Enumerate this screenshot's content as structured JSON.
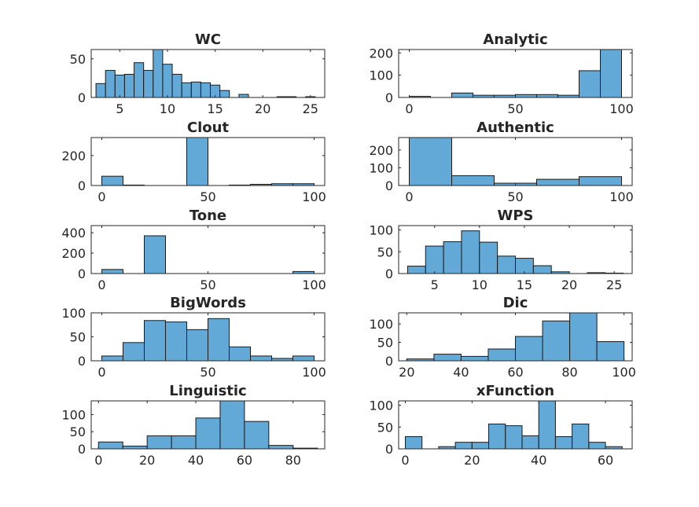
{
  "chart_data": [
    {
      "type": "bar",
      "title": "WC",
      "xlim": [
        2,
        26.5
      ],
      "ylim": [
        0,
        62
      ],
      "edges": [
        2.5,
        3.5,
        4.5,
        5.5,
        6.5,
        7.5,
        8.5,
        9.5,
        10.5,
        11.5,
        12.5,
        13.5,
        14.5,
        15.5,
        16.5,
        17.5,
        18.5,
        19.5,
        20.5,
        21.5,
        22.5,
        23.5,
        24.5,
        25.5
      ],
      "values": [
        18,
        35,
        29,
        30,
        45,
        35,
        62,
        43,
        30,
        19,
        20,
        19,
        16,
        9,
        0,
        4,
        0,
        0,
        0,
        1,
        1,
        0,
        1
      ],
      "xticks": [
        5,
        10,
        15,
        20,
        25
      ],
      "yticks": [
        0,
        50
      ]
    },
    {
      "type": "bar",
      "title": "Analytic",
      "xlim": [
        -5,
        105
      ],
      "ylim": [
        0,
        215
      ],
      "edges": [
        0,
        10,
        20,
        30,
        40,
        50,
        60,
        70,
        80,
        90,
        100
      ],
      "values": [
        5,
        0,
        20,
        10,
        10,
        13,
        13,
        10,
        120,
        215
      ],
      "xticks": [
        0,
        50,
        100
      ],
      "yticks": [
        0,
        100,
        200
      ]
    },
    {
      "type": "bar",
      "title": "Clout",
      "xlim": [
        -5,
        105
      ],
      "ylim": [
        0,
        320
      ],
      "edges": [
        0,
        10,
        20,
        30,
        40,
        50,
        60,
        70,
        80,
        90,
        100
      ],
      "values": [
        62,
        3,
        0,
        0,
        320,
        0,
        3,
        8,
        12,
        12
      ],
      "xticks": [
        0,
        50,
        100
      ],
      "yticks": [
        0,
        200
      ]
    },
    {
      "type": "bar",
      "title": "Authentic",
      "xlim": [
        -5,
        105
      ],
      "ylim": [
        0,
        270
      ],
      "edges": [
        0,
        20,
        40,
        60,
        80,
        100
      ],
      "values": [
        270,
        55,
        13,
        35,
        50
      ],
      "xticks": [
        0,
        50,
        100
      ],
      "yticks": [
        0,
        100,
        200
      ]
    },
    {
      "type": "bar",
      "title": "Tone",
      "xlim": [
        -5,
        105
      ],
      "ylim": [
        0,
        470
      ],
      "edges": [
        0,
        10,
        20,
        30,
        40,
        50,
        60,
        70,
        80,
        90,
        100
      ],
      "values": [
        40,
        0,
        370,
        0,
        0,
        0,
        0,
        0,
        0,
        20
      ],
      "xticks": [
        0,
        50,
        100
      ],
      "yticks": [
        0,
        200,
        400
      ]
    },
    {
      "type": "bar",
      "title": "WPS",
      "xlim": [
        1,
        27
      ],
      "ylim": [
        0,
        110
      ],
      "edges": [
        2,
        4,
        6,
        8,
        10,
        12,
        14,
        16,
        18,
        20,
        22,
        24,
        26
      ],
      "values": [
        17,
        63,
        73,
        98,
        72,
        40,
        35,
        18,
        4,
        0,
        2,
        1
      ],
      "xticks": [
        5,
        10,
        15,
        20,
        25
      ],
      "yticks": [
        0,
        50,
        100
      ]
    },
    {
      "type": "bar",
      "title": "BigWords",
      "xlim": [
        -5,
        105
      ],
      "ylim": [
        0,
        100
      ],
      "edges": [
        0,
        10,
        20,
        30,
        40,
        50,
        60,
        70,
        80,
        90,
        100
      ],
      "values": [
        10,
        38,
        84,
        81,
        65,
        88,
        29,
        10,
        5,
        10
      ],
      "xticks": [
        0,
        50,
        100
      ],
      "yticks": [
        0,
        50,
        100
      ]
    },
    {
      "type": "bar",
      "title": "Dic",
      "xlim": [
        17,
        103
      ],
      "ylim": [
        0,
        130
      ],
      "edges": [
        20,
        30,
        40,
        50,
        60,
        70,
        80,
        90,
        100
      ],
      "values": [
        5,
        18,
        12,
        32,
        66,
        108,
        130,
        52
      ],
      "xticks": [
        20,
        40,
        60,
        80,
        100
      ],
      "yticks": [
        0,
        50,
        100
      ]
    },
    {
      "type": "bar",
      "title": "Linguistic",
      "xlim": [
        -3,
        93
      ],
      "ylim": [
        0,
        140
      ],
      "edges": [
        0,
        10,
        20,
        30,
        40,
        50,
        60,
        70,
        80,
        90
      ],
      "values": [
        20,
        8,
        38,
        38,
        90,
        140,
        80,
        10,
        2
      ],
      "xticks": [
        0,
        20,
        40,
        60,
        80
      ],
      "yticks": [
        0,
        50,
        100
      ]
    },
    {
      "type": "bar",
      "title": "xFunction",
      "xlim": [
        -2,
        68
      ],
      "ylim": [
        0,
        110
      ],
      "edges": [
        0,
        5,
        10,
        15,
        20,
        25,
        30,
        35,
        40,
        45,
        50,
        55,
        60,
        65
      ],
      "values": [
        28,
        0,
        5,
        15,
        15,
        57,
        53,
        30,
        110,
        28,
        57,
        15,
        5
      ],
      "xticks": [
        0,
        20,
        40,
        60
      ],
      "yticks": [
        0,
        50,
        100
      ]
    }
  ]
}
